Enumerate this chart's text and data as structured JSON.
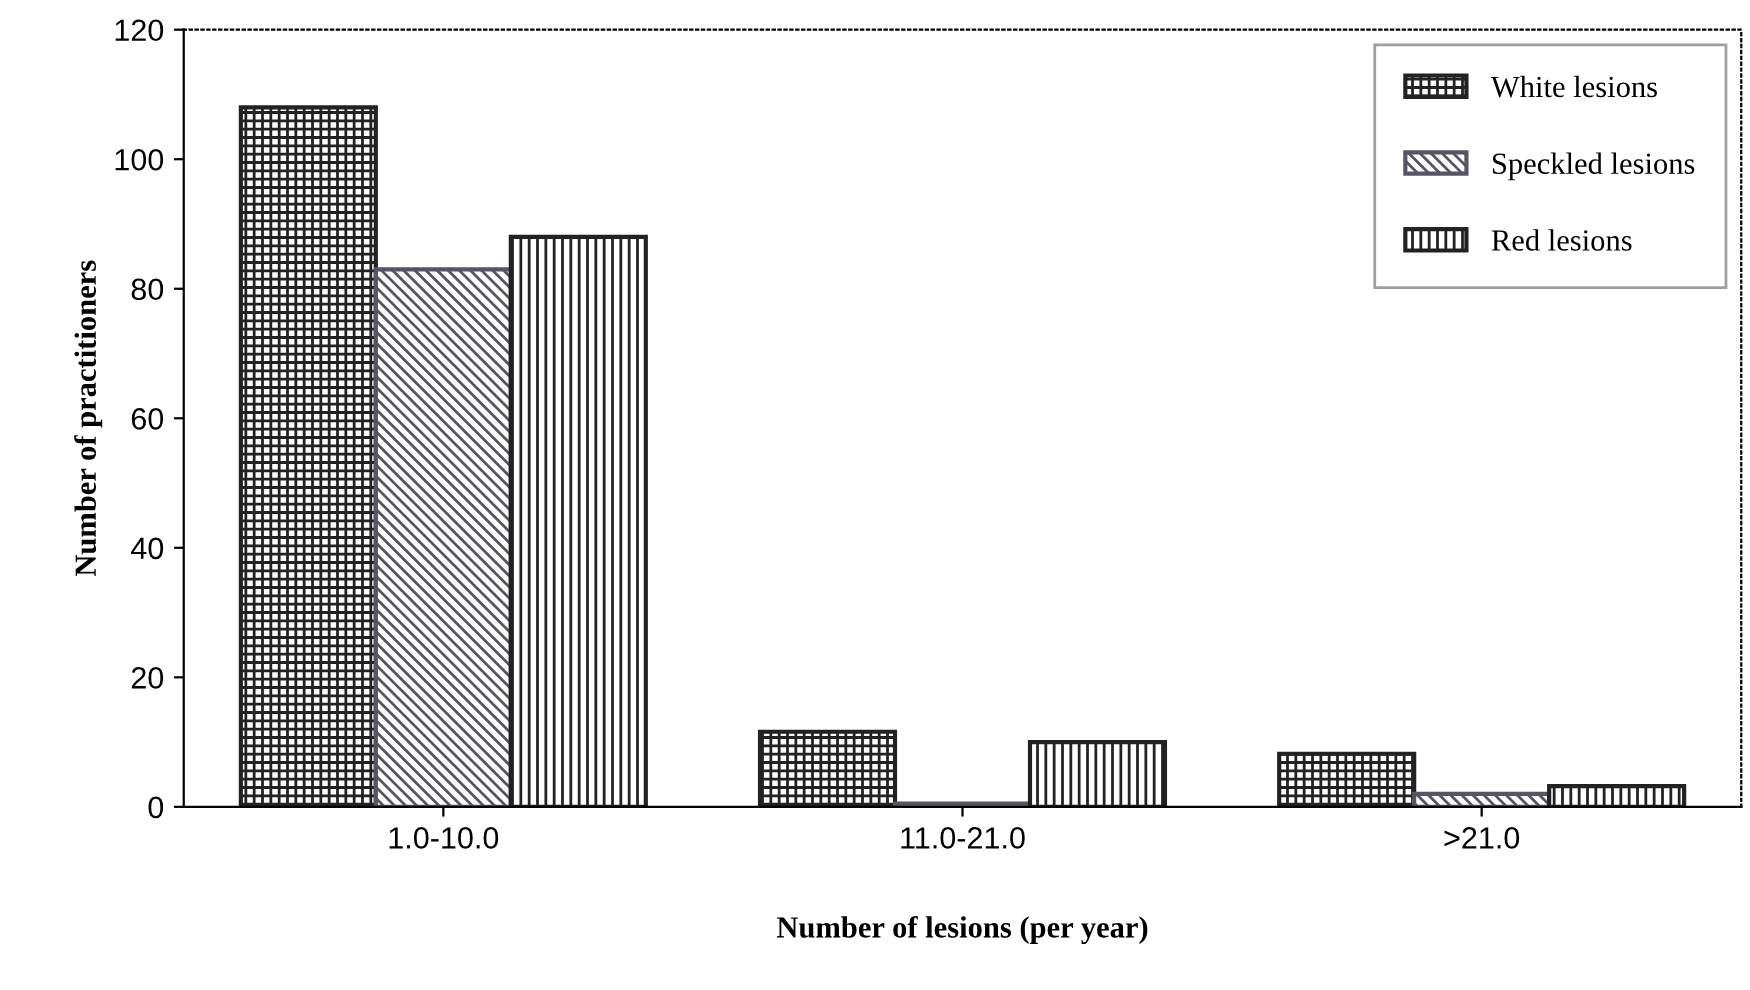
{
  "chart_data": {
    "type": "bar",
    "xlabel": "Number of lesions (per year)",
    "ylabel": "Number of practitioners",
    "categories": [
      "1.0-10.0",
      "11.0-21.0",
      ">21.0"
    ],
    "series": [
      {
        "name": "White lesions",
        "color": "#222222",
        "values": [
          108,
          11.6,
          8.2
        ]
      },
      {
        "name": "Speckled lesions",
        "color": "#555566",
        "values": [
          83,
          0.5,
          2
        ]
      },
      {
        "name": "Red lesions",
        "color": "#222222",
        "values": [
          88,
          10,
          3.2
        ]
      }
    ],
    "ylim": [
      0,
      120
    ],
    "yticks": [
      0,
      20,
      40,
      60,
      80,
      100,
      120
    ],
    "grid": false,
    "legend": "top right"
  }
}
